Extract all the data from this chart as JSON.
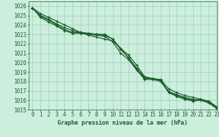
{
  "title": "Graphe pression niveau de la mer (hPa)",
  "background_color": "#cceedd",
  "plot_bg_color": "#cceedd",
  "grid_color": "#99ccbb",
  "line_color": "#1a5c2a",
  "marker_color": "#1a5c2a",
  "xlim": [
    -0.5,
    23
  ],
  "ylim": [
    1015,
    1026.5
  ],
  "xticks": [
    0,
    1,
    2,
    3,
    4,
    5,
    6,
    7,
    8,
    9,
    10,
    11,
    12,
    13,
    14,
    15,
    16,
    17,
    18,
    19,
    20,
    21,
    22,
    23
  ],
  "yticks": [
    1015,
    1016,
    1017,
    1018,
    1019,
    1020,
    1021,
    1022,
    1023,
    1024,
    1025,
    1026
  ],
  "series": [
    [
      1025.8,
      1025.2,
      1024.8,
      1024.4,
      1024.0,
      1023.6,
      1023.2,
      1022.9,
      1022.7,
      1022.5,
      1022.3,
      1021.5,
      1020.8,
      1019.7,
      1018.5,
      1018.3,
      1018.2,
      1017.2,
      1016.8,
      1016.5,
      1016.3,
      1016.1,
      1015.9,
      1015.2
    ],
    [
      1025.8,
      1025.0,
      1024.6,
      1024.1,
      1023.7,
      1023.4,
      1023.2,
      1023.1,
      1023.0,
      1022.9,
      1022.5,
      1021.5,
      1020.5,
      1019.4,
      1018.4,
      1018.3,
      1018.1,
      1016.9,
      1016.6,
      1016.3,
      1016.1,
      1016.0,
      1015.9,
      1015.3
    ],
    [
      1025.8,
      1024.9,
      1024.5,
      1024.0,
      1023.5,
      1023.2,
      1023.2,
      1023.1,
      1023.0,
      1023.0,
      1022.5,
      1021.4,
      1020.5,
      1019.3,
      1018.3,
      1018.3,
      1018.1,
      1016.9,
      1016.5,
      1016.2,
      1016.0,
      1016.1,
      1015.8,
      1015.2
    ],
    [
      1025.8,
      1024.8,
      1024.3,
      1023.9,
      1023.4,
      1023.1,
      1023.1,
      1023.0,
      1022.9,
      1022.8,
      1022.2,
      1021.0,
      1020.3,
      1019.2,
      1018.2,
      1018.2,
      1018.0,
      1016.8,
      1016.4,
      1016.1,
      1015.9,
      1016.0,
      1015.7,
      1015.1
    ]
  ],
  "title_fontsize": 6,
  "tick_fontsize": 5.5,
  "linewidth": 0.9,
  "markersize": 3.5
}
